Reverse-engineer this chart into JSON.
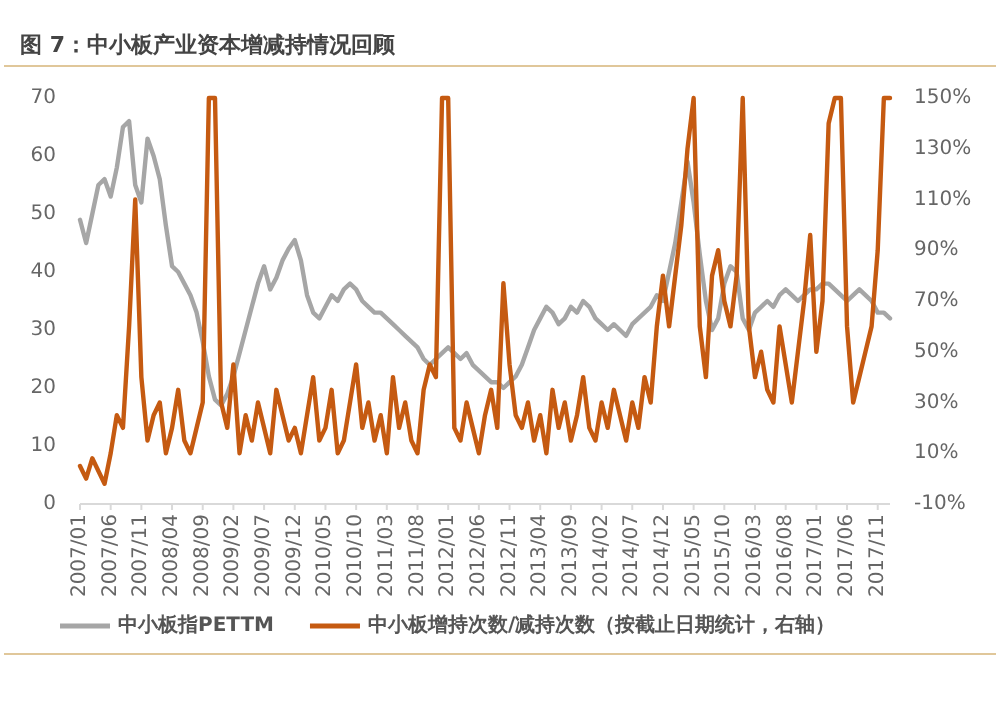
{
  "chart_data": {
    "type": "line",
    "title": "图 7：中小板产业资本增减持情况回顾",
    "categories": [
      "2007/01",
      null,
      null,
      null,
      null,
      "2007/06",
      null,
      null,
      null,
      null,
      "2007/11",
      null,
      null,
      null,
      null,
      "2008/04",
      null,
      null,
      null,
      null,
      "2008/09",
      null,
      null,
      null,
      null,
      "2009/02",
      null,
      null,
      null,
      null,
      "2009/07",
      null,
      null,
      null,
      null,
      "2009/12",
      null,
      null,
      null,
      null,
      "2010/05",
      null,
      null,
      null,
      null,
      "2010/10",
      null,
      null,
      null,
      null,
      "2011/03",
      null,
      null,
      null,
      null,
      "2011/08",
      null,
      null,
      null,
      null,
      "2012/01",
      null,
      null,
      null,
      null,
      "2012/06",
      null,
      null,
      null,
      null,
      "2012/11",
      null,
      null,
      null,
      null,
      "2013/04",
      null,
      null,
      null,
      null,
      "2013/09",
      null,
      null,
      null,
      null,
      "2014/02",
      null,
      null,
      null,
      null,
      "2014/07",
      null,
      null,
      null,
      null,
      "2014/12",
      null,
      null,
      null,
      null,
      "2015/05",
      null,
      null,
      null,
      null,
      "2015/10",
      null,
      null,
      null,
      null,
      "2016/03",
      null,
      null,
      null,
      null,
      "2016/08",
      null,
      null,
      null,
      null,
      "2017/01",
      null,
      null,
      null,
      null,
      "2017/06",
      null,
      null,
      null,
      null,
      "2017/11",
      null,
      null
    ],
    "series": [
      {
        "name": "中小板指PETTM",
        "color": "#a6a6a6",
        "values": [
          49,
          45,
          50,
          55,
          56,
          53,
          58,
          65,
          66,
          55,
          52,
          63,
          60,
          56,
          48,
          41,
          40,
          38,
          36,
          33,
          28,
          22,
          18,
          17,
          19,
          22,
          26,
          30,
          34,
          38,
          41,
          37,
          39,
          42,
          44,
          45.5,
          42,
          36,
          33,
          32,
          34,
          36,
          35,
          37,
          38,
          37,
          35,
          34,
          33,
          33,
          32,
          31,
          30,
          29,
          28,
          27,
          25,
          24,
          25,
          26,
          27,
          26,
          25,
          26,
          24,
          23,
          22,
          21,
          21,
          20,
          21,
          22,
          24,
          27,
          30,
          32,
          34,
          33,
          31,
          32,
          34,
          33,
          35,
          34,
          32,
          31,
          30,
          31,
          30,
          29,
          31,
          32,
          33,
          34,
          36,
          35,
          40,
          45,
          52,
          59,
          52,
          43,
          35,
          30,
          32,
          38,
          41,
          40,
          32,
          30,
          33,
          34,
          35,
          34,
          36,
          37,
          36,
          35,
          36,
          37,
          37,
          38,
          38,
          37,
          36,
          35,
          36,
          37,
          36,
          35,
          33,
          33,
          32
        ]
      },
      {
        "name": "中小板增持次数/减持次数（按截止日期统计，右轴）",
        "color": "#c55a11",
        "axis": "y2",
        "values": [
          5,
          0,
          8,
          3,
          -2,
          10,
          25,
          20,
          60,
          110,
          40,
          15,
          25,
          30,
          10,
          20,
          35,
          15,
          10,
          20,
          30,
          150,
          150,
          30,
          20,
          45,
          10,
          25,
          15,
          30,
          20,
          10,
          35,
          25,
          15,
          20,
          10,
          25,
          40,
          15,
          20,
          35,
          10,
          15,
          30,
          45,
          20,
          30,
          15,
          25,
          10,
          40,
          20,
          30,
          15,
          10,
          35,
          45,
          40,
          150,
          150,
          20,
          15,
          30,
          20,
          10,
          25,
          35,
          20,
          77,
          45,
          25,
          20,
          30,
          15,
          25,
          10,
          35,
          20,
          30,
          15,
          25,
          40,
          20,
          15,
          30,
          20,
          35,
          25,
          15,
          30,
          20,
          40,
          30,
          60,
          80,
          60,
          80,
          100,
          130,
          150,
          60,
          40,
          80,
          90,
          70,
          60,
          80,
          150,
          60,
          40,
          50,
          35,
          30,
          60,
          45,
          30,
          50,
          70,
          96,
          50,
          70,
          140,
          150,
          150,
          60,
          30,
          40,
          50,
          60,
          90,
          150,
          150
        ]
      }
    ],
    "ylim": [
      0,
      70
    ],
    "yticks": [
      0,
      10,
      20,
      30,
      40,
      50,
      60,
      70
    ],
    "y2lim": [
      -10,
      150
    ],
    "y2ticks": [
      {
        "value": -10,
        "label": "-10%"
      },
      {
        "value": 10,
        "label": "10%"
      },
      {
        "value": 30,
        "label": "30%"
      },
      {
        "value": 50,
        "label": "50%"
      },
      {
        "value": 70,
        "label": "70%"
      },
      {
        "value": 90,
        "label": "90%"
      },
      {
        "value": 110,
        "label": "110%"
      },
      {
        "value": 130,
        "label": "130%"
      },
      {
        "value": 150,
        "label": "150%"
      }
    ],
    "legend": "bottom"
  }
}
